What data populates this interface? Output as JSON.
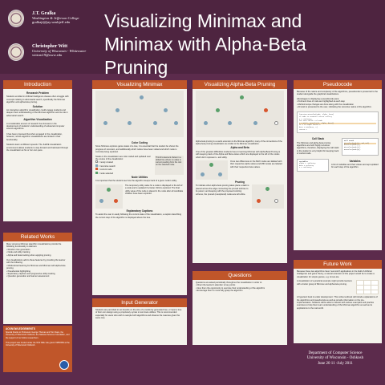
{
  "authors": [
    {
      "name": "J.T. Gralka",
      "affiliation": "Washington & Jefferson College",
      "email": "gralkajt@jay.washjeff.edu"
    },
    {
      "name": "Christopher Witt",
      "affiliation": "University of Wisconsin - Whitewater",
      "email": "wittcm19@uww.edu"
    }
  ],
  "title_line1": "Visualizing Minimax and",
  "title_line2": "Minimax with Alpha-Beta Pruning",
  "panels": {
    "intro": "Introduction",
    "related": "Related Works",
    "vis_minimax": "Visualizing Minimax",
    "input_gen": "Input Generator",
    "vis_ab": "Visualizing Alpha-Beta Pruning",
    "questions": "Questions",
    "pseudocode": "Pseudocode",
    "future": "Future Work"
  },
  "intro": {
    "problem_head": "Research Problem",
    "problem": "Students enrolled in Artificial Intelligence classes often struggle with concepts relating to adversarial search, specifically the Minimax algorithm and alpha-beta pruning.",
    "solution_head": "Solution",
    "solution": "An interactive algorithm visualization could engage students and deepen their understanding of the Minimax algorithm and its role in adversarial search.",
    "av_head": "Algorithm Visualization",
    "av": "A considerable amount of research has focused on the development of students' understanding of advanced computer science algorithms.",
    "body1": "It has been proposed that when engaged in the visualization, however, novice algorithm visualizations are limited in their functionality.",
    "body2": "Students learn at different speeds. The JHAVE visualization environment allows students to step forward and backward through the visualization at his or her own pace."
  },
  "related": {
    "body": "Many previous Minimax algorithm visualizations provide the following functionality to learners:",
    "items": [
      "Random tree generation",
      "Node and utility tracking",
      "Alpha and beta tracking when applying pruning"
    ],
    "body2": "Our visualizations add to these features by providing the learner with the following:",
    "items2": [
      "Multicolored learning for Minimax and Minimax with alpha-beta pruning",
      "Pseudocode highlighting",
      "Exploratory captions and progressive utility tracking",
      "Question generation and learner assessment"
    ]
  },
  "ack": {
    "head": "ACKNOWLEDGEMENTS",
    "body": "Special thanks to Professors George Thomas and Tom Naps, the University of Wisconsin Oshkosh, the National Science Foundation, and the support of our fellow researchers.",
    "body2": "This project was funded under the NSF REU site grant # 0851569 at the University of Wisconsin Oshkosh."
  },
  "minimax": {
    "color_head": "Color Coding",
    "color_body": "Since Minimax explores game states of a tree, it is essential that the student be shown the progress of recursion, and additionally which nodes have been visited and which node is currently being explored.",
    "legend_intro": "Nodes in the visualization are color coded and updated over the course of the visualization:",
    "legend": [
      "= newly created",
      "= recursive search",
      "= current node",
      "= node selected"
    ],
    "side_note": "This first element shows in a dotted line where no value is current pending from the root on the selected node.",
    "util_head": "Node Utilities",
    "util_body": "It is important that the student see how the algorithm keeps track of a given node's utility.",
    "util_side": "The temporary utility value for a node is displayed to the left of a node and is updated if a better child is explored. The final utility value of the node is placed in the node after all candidate children have been explored.",
    "caption_head": "Explanatory Captions",
    "caption_body": "To assist the user in easily following the current state of the visualization, a caption describing the current step of the algorithm is displayed above the tree."
  },
  "input": {
    "body": "Students are permitted to set bounds on the size of a randomly generated tree, or input a tree of their own design using a proprietary syntax to test trace utilities. This is recommended especially for users who wish to sample both algorithms and observe the nuances given the same tree."
  },
  "alphabeta": {
    "caption": "Alpha-beta pruning is a useful extension to the Minimax algorithm; many of the conventions of the alpha-beta pruning visualization are similar to the Minimax visualization.",
    "ab_head": "Alpha and Beta",
    "ab_body": "One of the greatest difficulties students have in learning Minimax with Alpha-Beta Pruning is with keeping track of the Alpha and Beta values which are displayed to the left of the nodes which don't represent ∞ and utility.",
    "ab_side": "Once two differences in the MAX nodes are labeled with their respective alpha values and MIN nodes are labeled with their respective beta values.",
    "prune_head": "Pruning",
    "prune_body": "To indicate when alpha beta pruning takes place a dash is placed across the edge connecting the pruned subtree to its parent, and keeping with the proposed coloring scheme, the pruned (unexplored) nodes are left white."
  },
  "questions": {
    "body": "Questions are asked periodically throughout the visualization in order to:",
    "items": [
      "Direct the learner's attention to key points",
      "Give them the opportunity to exercise their understanding of the algorithm",
      "Encourage them to more fully grasp the algorithm"
    ]
  },
  "pseudocode": {
    "intro": "Because of the nature and complexity of the algorithms, pseudocode is presented to the student alongside the graphical visualizations.",
    "adv": "Advantages to displaying a pseudocode pane:",
    "items": [
      "Pertinent lines of code are highlighted at each step",
      "Method scope changes are done along with the visualization",
      "All work is presented to the user, indicating the recursive nature of the algorithm."
    ],
    "callstack_head": "Call Stack",
    "callstack_body": "The Minimax and alpha-beta pruning algorithms are both highly recursive algorithms, therefore, displaying the call stack to the student is very helpful for keeping track of method calls.",
    "vars_head": "Variables",
    "vars_body": "A list of variables and their values are kept updated for each step of the algorithm.",
    "code_lines": [
      "function minValue(node, alpha, beta)",
      "  if node is terminal return utility",
      "  v = +infinity",
      "  for each child c of node",
      "    v = min(v, maxValue(c, alpha, beta))",
      "    if v <= alpha return v",
      "    beta = min(beta, v)",
      "  return v"
    ],
    "stack": [
      "Call Stack",
      "minValue(Node(2),-inf,inf)",
      "maxValue(Node(1))",
      "minValue(Node(1))",
      "maxValue(Node(0))"
    ],
    "vars": [
      "Variables",
      "alpha = -Infinity",
      "beta = Infinity",
      "v = +Infinity"
    ]
  },
  "future": {
    "body": "Because these two algorithms have 'real world' applications in the field of Artificial Intelligence and game theory, a natural extension of this project would be to create a visualization for simple games, e.g. tic-tac-toe.",
    "body2": "A visualization of a practical example might provide learners with a better grasp of Minimax and alpha-beta pruning.",
    "body3": "A hypertext book is under development. This online textbook will include explanations of the algorithms and pseudocode as well as provide information on the pre-implementation. Students will be able to interact with various examples and practice exercises to help them learn understanding of the Minimax algorithm as well as its applications to the real world."
  },
  "department": [
    "Department of Computer Science",
    "University of Wisconsin - Oshkosh",
    "June 20 11 -July 2011"
  ]
}
